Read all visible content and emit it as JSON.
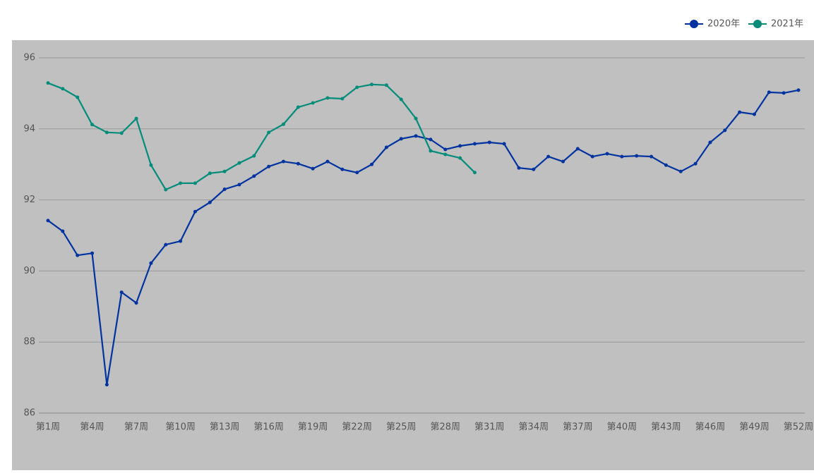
{
  "chart_data": {
    "type": "line",
    "categories": [
      "第1周",
      null,
      null,
      "第4周",
      null,
      null,
      "第7周",
      null,
      null,
      "第10周",
      null,
      null,
      "第13周",
      null,
      null,
      "第16周",
      null,
      null,
      "第19周",
      null,
      null,
      "第22周",
      null,
      null,
      "第25周",
      null,
      null,
      "第28周",
      null,
      null,
      "第31周",
      null,
      null,
      "第34周",
      null,
      null,
      "第37周",
      null,
      null,
      "第40周",
      null,
      null,
      "第43周",
      null,
      null,
      "第46周",
      null,
      null,
      "第49周",
      null,
      null,
      "第52周"
    ],
    "series": [
      {
        "name": "2020年",
        "color": "#0033a0",
        "values": [
          91.42,
          91.12,
          90.44,
          90.5,
          86.8,
          89.4,
          89.1,
          90.22,
          90.74,
          90.84,
          91.67,
          91.93,
          92.3,
          92.43,
          92.67,
          92.94,
          93.08,
          93.02,
          92.88,
          93.08,
          92.86,
          92.77,
          93.0,
          93.48,
          93.72,
          93.8,
          93.7,
          93.42,
          93.52,
          93.58,
          93.62,
          93.58,
          92.9,
          92.86,
          93.22,
          93.08,
          93.44,
          93.22,
          93.3,
          93.22,
          93.24,
          93.22,
          92.98,
          92.8,
          93.02,
          93.62,
          93.96,
          94.47,
          94.41,
          95.03,
          95.01,
          95.09
        ]
      },
      {
        "name": "2021年",
        "color": "#008c7a",
        "values": [
          95.29,
          95.13,
          94.89,
          94.12,
          93.9,
          93.88,
          94.29,
          92.98,
          92.29,
          92.47,
          92.47,
          92.75,
          92.8,
          93.04,
          93.24,
          93.9,
          94.13,
          94.61,
          94.73,
          94.87,
          94.85,
          95.17,
          95.25,
          95.23,
          94.83,
          94.29,
          93.38,
          93.28,
          93.18,
          92.77,
          null,
          null,
          null,
          null,
          null,
          null,
          null,
          null,
          null,
          null,
          null,
          null,
          null,
          null,
          null,
          null,
          null,
          null,
          null,
          null,
          null,
          null
        ]
      }
    ],
    "ylim": [
      86,
      96
    ],
    "yticks": [
      86,
      88,
      90,
      92,
      94,
      96
    ],
    "grid": true,
    "legend": "top-right"
  }
}
